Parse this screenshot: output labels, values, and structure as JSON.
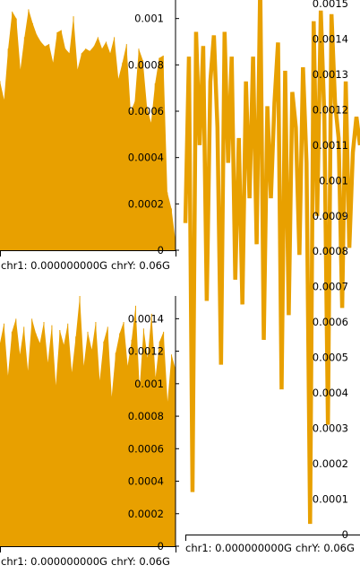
{
  "colors": {
    "track": "#e8a000",
    "axis": "#000000",
    "background": "#ffffff"
  },
  "chart_data": [
    {
      "id": "top-left",
      "type": "area",
      "ylim": [
        0,
        0.00108
      ],
      "yticks": [
        {
          "value": 0,
          "label": "0"
        },
        {
          "value": 0.0002,
          "label": "0.0002"
        },
        {
          "value": 0.0004,
          "label": "0.0004"
        },
        {
          "value": 0.0006,
          "label": "0.0006"
        },
        {
          "value": 0.0008,
          "label": "0.0008"
        },
        {
          "value": 0.001,
          "label": "0.001"
        }
      ],
      "xtick_labels": [
        "chr1: 0.000000000G",
        "chrY: 0.06G"
      ],
      "values": [
        0.00073,
        0.00065,
        0.00087,
        0.00103,
        0.001,
        0.00078,
        0.00092,
        0.00104,
        0.00098,
        0.00093,
        0.0009,
        0.00088,
        0.00089,
        0.00081,
        0.00094,
        0.00095,
        0.00087,
        0.00085,
        0.00101,
        0.00078,
        0.00085,
        0.00087,
        0.00086,
        0.00088,
        0.00092,
        0.00087,
        0.0009,
        0.00085,
        0.00092,
        0.00074,
        0.00081,
        0.00089,
        0.0006,
        0.00064,
        0.00087,
        0.00082,
        0.00062,
        0.00055,
        0.00072,
        0.00083,
        0.00084,
        0.00025,
        0.00018,
        4e-05
      ]
    },
    {
      "id": "bottom-left",
      "type": "area",
      "ylim": [
        0,
        0.00154
      ],
      "yticks": [
        {
          "value": 0,
          "label": "0"
        },
        {
          "value": 0.0002,
          "label": "0.0002"
        },
        {
          "value": 0.0004,
          "label": "0.0004"
        },
        {
          "value": 0.0006,
          "label": "0.0006"
        },
        {
          "value": 0.0008,
          "label": "0.0008"
        },
        {
          "value": 0.001,
          "label": "0.001"
        },
        {
          "value": 0.0012,
          "label": "0.0012"
        },
        {
          "value": 0.0014,
          "label": "0.0014"
        }
      ],
      "xtick_labels": [
        "chr1: 0.000000000G",
        "chrY: 0.06G"
      ],
      "values": [
        0.00125,
        0.00137,
        0.00105,
        0.00132,
        0.0014,
        0.00118,
        0.00135,
        0.00108,
        0.0014,
        0.00131,
        0.00125,
        0.00138,
        0.00113,
        0.00136,
        0.00099,
        0.00133,
        0.00124,
        0.00137,
        0.00107,
        0.00129,
        0.00154,
        0.00111,
        0.00132,
        0.00121,
        0.00138,
        0.00102,
        0.00126,
        0.00135,
        0.00092,
        0.00119,
        0.00131,
        0.00138,
        0.00111,
        0.00127,
        0.00148,
        0.00097,
        0.00134,
        0.00116,
        0.00143,
        0.00104,
        0.00126,
        0.00132,
        0.00089,
        0.00118,
        0.00109
      ]
    },
    {
      "id": "right",
      "type": "line",
      "ylim": [
        0,
        0.00151
      ],
      "yticks": [
        {
          "value": 0,
          "label": "0"
        },
        {
          "value": 0.0001,
          "label": "0.0001"
        },
        {
          "value": 0.0002,
          "label": "0.0002"
        },
        {
          "value": 0.0003,
          "label": "0.0003"
        },
        {
          "value": 0.0004,
          "label": "0.0004"
        },
        {
          "value": 0.0005,
          "label": "0.0005"
        },
        {
          "value": 0.0006,
          "label": "0.0006"
        },
        {
          "value": 0.0007,
          "label": "0.0007"
        },
        {
          "value": 0.0008,
          "label": "0.0008"
        },
        {
          "value": 0.0009,
          "label": "0.0009"
        },
        {
          "value": 0.001,
          "label": "0.001"
        },
        {
          "value": 0.0011,
          "label": "0.0011"
        },
        {
          "value": 0.0012,
          "label": "0.0012"
        },
        {
          "value": 0.0013,
          "label": "0.0013"
        },
        {
          "value": 0.0014,
          "label": "0.0014"
        },
        {
          "value": 0.0015,
          "label": "0.0015"
        }
      ],
      "xtick_labels": [
        "chr1: 0.000000000G",
        "chrY: 0.06G"
      ],
      "values": [
        0.00088,
        0.00135,
        0.00012,
        0.00142,
        0.0011,
        0.00138,
        0.00066,
        0.00128,
        0.00141,
        0.00115,
        0.00048,
        0.00142,
        0.00105,
        0.00135,
        0.00072,
        0.00112,
        0.00065,
        0.00128,
        0.00095,
        0.00135,
        0.00082,
        0.00156,
        0.00055,
        0.00121,
        0.00095,
        0.00122,
        0.00139,
        0.00041,
        0.00131,
        0.00062,
        0.00125,
        0.00115,
        0.00079,
        0.00132,
        0.00105,
        3e-05,
        0.00145,
        0.0009,
        0.00148,
        0.00118,
        0.00031,
        0.00147,
        0.00122,
        0.00112,
        0.00064,
        0.00128,
        0.00081,
        0.00108,
        0.00118,
        0.0011
      ]
    }
  ]
}
